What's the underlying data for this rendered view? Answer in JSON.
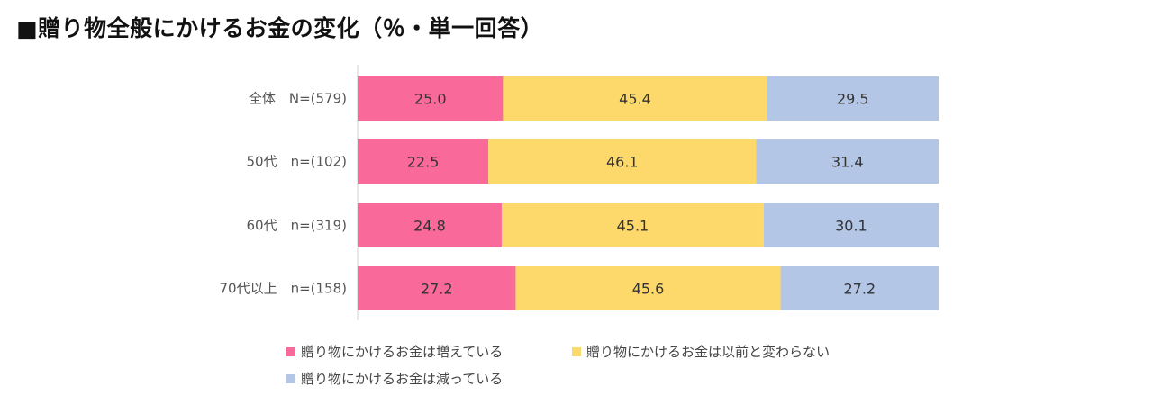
{
  "title": "■贈り物全般にかけるお金の変化（％・単一回答）",
  "chart_data": {
    "type": "bar",
    "orientation": "horizontal",
    "stacked": true,
    "percent": true,
    "categories": [
      "全体　N=(579)",
      "50代　n=(102)",
      "60代　n=(319)",
      "70代以上　n=(158)"
    ],
    "series": [
      {
        "name": "贈り物にかけるお金は増えている",
        "color": "#f9699a",
        "values": [
          25.0,
          22.5,
          24.8,
          27.2
        ]
      },
      {
        "name": "贈り物にかけるお金は以前と変わらない",
        "color": "#fcd96a",
        "values": [
          45.4,
          46.1,
          45.1,
          45.6
        ]
      },
      {
        "name": "贈り物にかけるお金は減っている",
        "color": "#b4c6e6",
        "values": [
          29.5,
          31.4,
          30.1,
          27.2
        ]
      }
    ],
    "legend": "bottom",
    "grid": false,
    "xlabel": "",
    "ylabel": ""
  }
}
